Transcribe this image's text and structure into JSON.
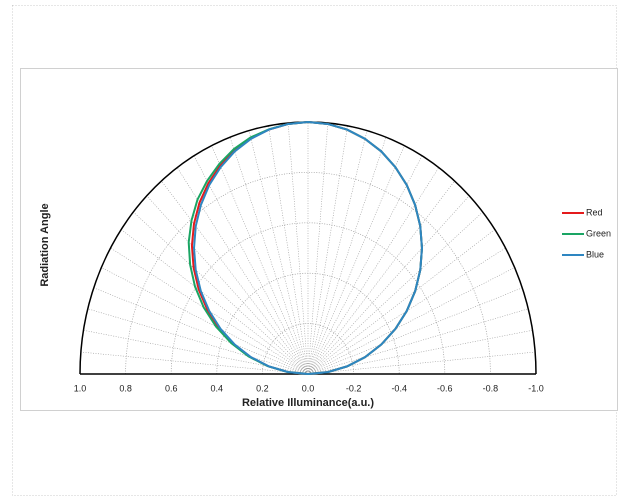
{
  "chart_data": {
    "type": "polar_half",
    "xlabel": "Relative Illuminance(a.u.)",
    "ylabel": "Radiation Angle",
    "xlim": [
      1,
      -1
    ],
    "xticks": [
      {
        "value": 1,
        "label": "1.0"
      },
      0.8,
      0.6,
      0.4,
      0.2,
      {
        "value": 0,
        "label": "0.0"
      },
      -0.2,
      -0.4,
      -0.6,
      -0.8,
      {
        "value": -1,
        "label": "-1.0"
      }
    ],
    "angles": [
      -90,
      -85,
      -80,
      -75,
      -70,
      -65,
      -60,
      -55,
      -50,
      -45,
      -40,
      -35,
      -30,
      -25,
      -20,
      -15,
      -10,
      -5,
      0,
      5,
      10,
      15,
      20,
      25,
      30,
      35,
      40,
      45,
      50,
      55,
      60,
      65,
      70,
      75,
      80,
      85,
      90
    ],
    "series": [
      {
        "name": "Red",
        "color": "#e41a1c",
        "values": [
          0,
          0.087,
          0.174,
          0.259,
          0.342,
          0.423,
          0.5,
          0.574,
          0.643,
          0.707,
          0.766,
          0.819,
          0.866,
          0.906,
          0.94,
          0.966,
          0.985,
          0.996,
          1,
          0.996,
          0.985,
          0.97,
          0.945,
          0.912,
          0.874,
          0.83,
          0.778,
          0.72,
          0.655,
          0.585,
          0.51,
          0.43,
          0.347,
          0.262,
          0.176,
          0.088,
          0
        ]
      },
      {
        "name": "Green",
        "color": "#1aa564",
        "values": [
          0,
          0.087,
          0.174,
          0.259,
          0.342,
          0.423,
          0.5,
          0.574,
          0.643,
          0.707,
          0.766,
          0.819,
          0.866,
          0.906,
          0.94,
          0.966,
          0.985,
          0.996,
          1,
          0.996,
          0.986,
          0.972,
          0.95,
          0.92,
          0.885,
          0.845,
          0.795,
          0.74,
          0.675,
          0.605,
          0.528,
          0.445,
          0.358,
          0.27,
          0.18,
          0.09,
          0
        ]
      },
      {
        "name": "Blue",
        "color": "#2e86c1",
        "values": [
          0,
          0.087,
          0.174,
          0.259,
          0.342,
          0.423,
          0.5,
          0.574,
          0.643,
          0.707,
          0.766,
          0.819,
          0.866,
          0.906,
          0.94,
          0.966,
          0.985,
          0.996,
          1,
          0.996,
          0.985,
          0.966,
          0.94,
          0.906,
          0.866,
          0.819,
          0.766,
          0.707,
          0.643,
          0.574,
          0.5,
          0.423,
          0.342,
          0.259,
          0.174,
          0.087,
          0
        ]
      }
    ],
    "grid": true
  }
}
